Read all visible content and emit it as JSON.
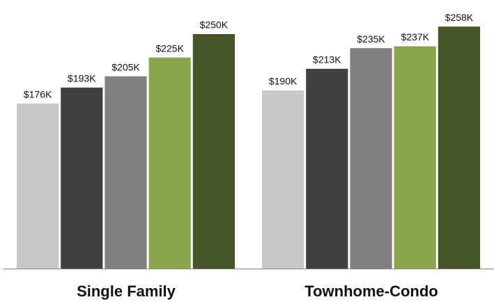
{
  "chart_data": {
    "type": "bar",
    "categories": [
      "Single Family",
      "Townhome-Condo"
    ],
    "series": [
      {
        "color": "#c8c8c8",
        "values": [
          176,
          190
        ],
        "value_labels": [
          "$176K",
          "$190K"
        ]
      },
      {
        "color": "#404040",
        "values": [
          193,
          213
        ],
        "value_labels": [
          "$193K",
          "$213K"
        ]
      },
      {
        "color": "#808080",
        "values": [
          205,
          235
        ],
        "value_labels": [
          "$205K",
          "$235K"
        ]
      },
      {
        "color": "#8aa64c",
        "values": [
          225,
          237
        ],
        "value_labels": [
          "$225K",
          "$237K"
        ]
      },
      {
        "color": "#47552a",
        "values": [
          250,
          258
        ],
        "value_labels": [
          "$250K",
          "$258K"
        ]
      }
    ],
    "ylim": [
      0,
      260
    ]
  }
}
